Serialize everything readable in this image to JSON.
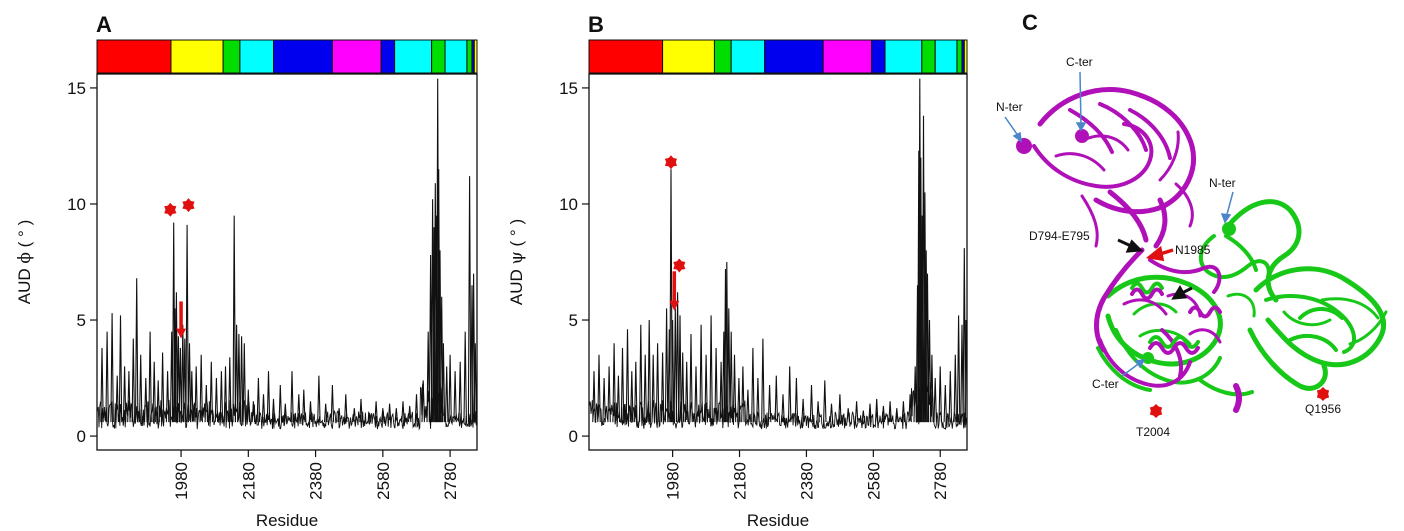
{
  "chart_data": [
    {
      "panel": "A",
      "type": "line",
      "xlabel": "Residue",
      "ylabel_prefix": "AUD ",
      "ylabel_symbol": "ϕ",
      "ylabel_suffix": " ( ° )",
      "xlim": [
        1730,
        2860
      ],
      "ylim": [
        -0.6,
        15.6
      ],
      "xticks": [
        1980,
        2180,
        2380,
        2580,
        2780
      ],
      "yticks": [
        0,
        5,
        10,
        15
      ],
      "domain_bar": [
        {
          "start": 1730,
          "end": 1950,
          "color": "#ff0000"
        },
        {
          "start": 1950,
          "end": 2105,
          "color": "#ffff00"
        },
        {
          "start": 2105,
          "end": 2155,
          "color": "#00dd00"
        },
        {
          "start": 2155,
          "end": 2255,
          "color": "#00ffff"
        },
        {
          "start": 2255,
          "end": 2430,
          "color": "#0000ee"
        },
        {
          "start": 2430,
          "end": 2575,
          "color": "#ff00ff"
        },
        {
          "start": 2575,
          "end": 2615,
          "color": "#0000ee"
        },
        {
          "start": 2615,
          "end": 2725,
          "color": "#00ffff"
        },
        {
          "start": 2725,
          "end": 2765,
          "color": "#00dd00"
        },
        {
          "start": 2765,
          "end": 2830,
          "color": "#00ffff"
        },
        {
          "start": 2830,
          "end": 2845,
          "color": "#00dd00"
        },
        {
          "start": 2845,
          "end": 2852,
          "color": "#0000ee"
        },
        {
          "start": 2852,
          "end": 2860,
          "color": "#ffff00"
        }
      ],
      "peaks": [
        {
          "x": 1745,
          "y": 3.8
        },
        {
          "x": 1760,
          "y": 4.5
        },
        {
          "x": 1775,
          "y": 5.3
        },
        {
          "x": 1790,
          "y": 2.6
        },
        {
          "x": 1800,
          "y": 5.2
        },
        {
          "x": 1812,
          "y": 3.0
        },
        {
          "x": 1825,
          "y": 2.8
        },
        {
          "x": 1838,
          "y": 4.2
        },
        {
          "x": 1848,
          "y": 6.8
        },
        {
          "x": 1860,
          "y": 3.5
        },
        {
          "x": 1875,
          "y": 2.5
        },
        {
          "x": 1888,
          "y": 4.5
        },
        {
          "x": 1900,
          "y": 3.2
        },
        {
          "x": 1912,
          "y": 2.4
        },
        {
          "x": 1925,
          "y": 3.6
        },
        {
          "x": 1940,
          "y": 2.8
        },
        {
          "x": 1952,
          "y": 4.5
        },
        {
          "x": 1958,
          "y": 9.2
        },
        {
          "x": 1962,
          "y": 5.5
        },
        {
          "x": 1966,
          "y": 6.2
        },
        {
          "x": 1972,
          "y": 4.3
        },
        {
          "x": 1978,
          "y": 3.8
        },
        {
          "x": 1985,
          "y": 4.8
        },
        {
          "x": 1991,
          "y": 4.2
        },
        {
          "x": 1998,
          "y": 9.1
        },
        {
          "x": 2005,
          "y": 4.0
        },
        {
          "x": 2012,
          "y": 2.8
        },
        {
          "x": 2025,
          "y": 3.0
        },
        {
          "x": 2040,
          "y": 3.5
        },
        {
          "x": 2055,
          "y": 2.2
        },
        {
          "x": 2070,
          "y": 3.2
        },
        {
          "x": 2085,
          "y": 2.5
        },
        {
          "x": 2100,
          "y": 2.8
        },
        {
          "x": 2112,
          "y": 3.0
        },
        {
          "x": 2125,
          "y": 3.4
        },
        {
          "x": 2138,
          "y": 9.5
        },
        {
          "x": 2145,
          "y": 4.8
        },
        {
          "x": 2152,
          "y": 4.4
        },
        {
          "x": 2160,
          "y": 4.3
        },
        {
          "x": 2168,
          "y": 4.0
        },
        {
          "x": 2180,
          "y": 2.0
        },
        {
          "x": 2195,
          "y": 1.5
        },
        {
          "x": 2210,
          "y": 2.5
        },
        {
          "x": 2225,
          "y": 1.8
        },
        {
          "x": 2240,
          "y": 2.8
        },
        {
          "x": 2255,
          "y": 1.6
        },
        {
          "x": 2275,
          "y": 2.2
        },
        {
          "x": 2290,
          "y": 1.4
        },
        {
          "x": 2310,
          "y": 2.8
        },
        {
          "x": 2330,
          "y": 1.8
        },
        {
          "x": 2345,
          "y": 2.0
        },
        {
          "x": 2365,
          "y": 1.5
        },
        {
          "x": 2390,
          "y": 2.6
        },
        {
          "x": 2410,
          "y": 1.4
        },
        {
          "x": 2430,
          "y": 2.2
        },
        {
          "x": 2450,
          "y": 1.2
        },
        {
          "x": 2470,
          "y": 1.8
        },
        {
          "x": 2495,
          "y": 1.2
        },
        {
          "x": 2515,
          "y": 1.6
        },
        {
          "x": 2540,
          "y": 1.0
        },
        {
          "x": 2560,
          "y": 1.5
        },
        {
          "x": 2580,
          "y": 1.2
        },
        {
          "x": 2600,
          "y": 1.4
        },
        {
          "x": 2620,
          "y": 1.2
        },
        {
          "x": 2640,
          "y": 1.5
        },
        {
          "x": 2660,
          "y": 1.3
        },
        {
          "x": 2680,
          "y": 1.8
        },
        {
          "x": 2700,
          "y": 2.4
        },
        {
          "x": 2715,
          "y": 4.5
        },
        {
          "x": 2722,
          "y": 7.8
        },
        {
          "x": 2728,
          "y": 10.2
        },
        {
          "x": 2732,
          "y": 9.0
        },
        {
          "x": 2736,
          "y": 10.9
        },
        {
          "x": 2740,
          "y": 9.5
        },
        {
          "x": 2743,
          "y": 15.4
        },
        {
          "x": 2746,
          "y": 11.5
        },
        {
          "x": 2750,
          "y": 8.0
        },
        {
          "x": 2755,
          "y": 6.0
        },
        {
          "x": 2760,
          "y": 4.0
        },
        {
          "x": 2770,
          "y": 3.0
        },
        {
          "x": 2780,
          "y": 3.5
        },
        {
          "x": 2795,
          "y": 2.8
        },
        {
          "x": 2810,
          "y": 3.2
        },
        {
          "x": 2825,
          "y": 4.5
        },
        {
          "x": 2838,
          "y": 11.2
        },
        {
          "x": 2845,
          "y": 6.5
        },
        {
          "x": 2850,
          "y": 7.0
        },
        {
          "x": 2855,
          "y": 4.0
        }
      ],
      "markers": [
        {
          "x": 1948,
          "y": 9.75
        },
        {
          "x": 2002,
          "y": 9.95
        }
      ],
      "arrows": [
        {
          "x": 1980,
          "y_from": 5.8,
          "y_to": 4.2
        }
      ]
    },
    {
      "panel": "B",
      "type": "line",
      "xlabel": "Residue",
      "ylabel_prefix": "AUD ",
      "ylabel_symbol": "ψ",
      "ylabel_suffix": " ( ° )",
      "xlim": [
        1730,
        2860
      ],
      "ylim": [
        -0.6,
        15.6
      ],
      "xticks": [
        1980,
        2180,
        2380,
        2580,
        2780
      ],
      "yticks": [
        0,
        5,
        10,
        15
      ],
      "domain_bar": [
        {
          "start": 1730,
          "end": 1950,
          "color": "#ff0000"
        },
        {
          "start": 1950,
          "end": 2105,
          "color": "#ffff00"
        },
        {
          "start": 2105,
          "end": 2155,
          "color": "#00dd00"
        },
        {
          "start": 2155,
          "end": 2255,
          "color": "#00ffff"
        },
        {
          "start": 2255,
          "end": 2430,
          "color": "#0000ee"
        },
        {
          "start": 2430,
          "end": 2575,
          "color": "#ff00ff"
        },
        {
          "start": 2575,
          "end": 2615,
          "color": "#0000ee"
        },
        {
          "start": 2615,
          "end": 2725,
          "color": "#00ffff"
        },
        {
          "start": 2725,
          "end": 2765,
          "color": "#00dd00"
        },
        {
          "start": 2765,
          "end": 2830,
          "color": "#00ffff"
        },
        {
          "start": 2830,
          "end": 2845,
          "color": "#00dd00"
        },
        {
          "start": 2845,
          "end": 2852,
          "color": "#0000ee"
        },
        {
          "start": 2852,
          "end": 2860,
          "color": "#ffff00"
        }
      ],
      "peaks": [
        {
          "x": 1745,
          "y": 2.8
        },
        {
          "x": 1760,
          "y": 3.5
        },
        {
          "x": 1775,
          "y": 2.5
        },
        {
          "x": 1790,
          "y": 3.0
        },
        {
          "x": 1805,
          "y": 4.0
        },
        {
          "x": 1818,
          "y": 2.6
        },
        {
          "x": 1830,
          "y": 3.8
        },
        {
          "x": 1845,
          "y": 4.6
        },
        {
          "x": 1858,
          "y": 2.8
        },
        {
          "x": 1870,
          "y": 3.2
        },
        {
          "x": 1885,
          "y": 4.8
        },
        {
          "x": 1898,
          "y": 3.5
        },
        {
          "x": 1910,
          "y": 5.0
        },
        {
          "x": 1922,
          "y": 3.5
        },
        {
          "x": 1935,
          "y": 4.0
        },
        {
          "x": 1950,
          "y": 3.6
        },
        {
          "x": 1962,
          "y": 5.5
        },
        {
          "x": 1970,
          "y": 4.6
        },
        {
          "x": 1975,
          "y": 11.5
        },
        {
          "x": 1980,
          "y": 5.0
        },
        {
          "x": 1988,
          "y": 5.5
        },
        {
          "x": 1995,
          "y": 6.2
        },
        {
          "x": 2002,
          "y": 5.2
        },
        {
          "x": 2010,
          "y": 3.6
        },
        {
          "x": 2022,
          "y": 3.2
        },
        {
          "x": 2035,
          "y": 4.4
        },
        {
          "x": 2050,
          "y": 3.0
        },
        {
          "x": 2065,
          "y": 4.8
        },
        {
          "x": 2080,
          "y": 3.5
        },
        {
          "x": 2095,
          "y": 5.2
        },
        {
          "x": 2110,
          "y": 3.8
        },
        {
          "x": 2125,
          "y": 3.2
        },
        {
          "x": 2133,
          "y": 4.5
        },
        {
          "x": 2138,
          "y": 7.2
        },
        {
          "x": 2142,
          "y": 7.5
        },
        {
          "x": 2148,
          "y": 5.5
        },
        {
          "x": 2155,
          "y": 4.5
        },
        {
          "x": 2165,
          "y": 3.5
        },
        {
          "x": 2178,
          "y": 2.5
        },
        {
          "x": 2190,
          "y": 3.0
        },
        {
          "x": 2205,
          "y": 2.0
        },
        {
          "x": 2220,
          "y": 3.8
        },
        {
          "x": 2235,
          "y": 2.5
        },
        {
          "x": 2250,
          "y": 4.2
        },
        {
          "x": 2270,
          "y": 2.2
        },
        {
          "x": 2290,
          "y": 2.6
        },
        {
          "x": 2310,
          "y": 1.8
        },
        {
          "x": 2330,
          "y": 3.0
        },
        {
          "x": 2350,
          "y": 2.5
        },
        {
          "x": 2370,
          "y": 1.6
        },
        {
          "x": 2395,
          "y": 2.2
        },
        {
          "x": 2415,
          "y": 1.5
        },
        {
          "x": 2435,
          "y": 2.4
        },
        {
          "x": 2455,
          "y": 1.4
        },
        {
          "x": 2480,
          "y": 1.8
        },
        {
          "x": 2505,
          "y": 1.2
        },
        {
          "x": 2530,
          "y": 1.5
        },
        {
          "x": 2550,
          "y": 1.1
        },
        {
          "x": 2570,
          "y": 1.4
        },
        {
          "x": 2590,
          "y": 1.6
        },
        {
          "x": 2610,
          "y": 1.3
        },
        {
          "x": 2630,
          "y": 1.5
        },
        {
          "x": 2650,
          "y": 1.2
        },
        {
          "x": 2670,
          "y": 1.5
        },
        {
          "x": 2690,
          "y": 1.8
        },
        {
          "x": 2705,
          "y": 3.0
        },
        {
          "x": 2712,
          "y": 6.5
        },
        {
          "x": 2716,
          "y": 12.3
        },
        {
          "x": 2719,
          "y": 15.4
        },
        {
          "x": 2722,
          "y": 12.0
        },
        {
          "x": 2726,
          "y": 9.5
        },
        {
          "x": 2730,
          "y": 13.8
        },
        {
          "x": 2734,
          "y": 10.5
        },
        {
          "x": 2738,
          "y": 8.0
        },
        {
          "x": 2742,
          "y": 7.0
        },
        {
          "x": 2748,
          "y": 5.0
        },
        {
          "x": 2755,
          "y": 3.5
        },
        {
          "x": 2765,
          "y": 2.5
        },
        {
          "x": 2780,
          "y": 3.0
        },
        {
          "x": 2795,
          "y": 2.2
        },
        {
          "x": 2810,
          "y": 2.8
        },
        {
          "x": 2825,
          "y": 3.5
        },
        {
          "x": 2835,
          "y": 5.2
        },
        {
          "x": 2845,
          "y": 4.8
        },
        {
          "x": 2852,
          "y": 8.1
        },
        {
          "x": 2857,
          "y": 5.0
        }
      ],
      "markers": [
        {
          "x": 1975,
          "y": 11.8
        },
        {
          "x": 2000,
          "y": 7.35
        }
      ],
      "arrows": [
        {
          "x": 1985,
          "y_from": 7.1,
          "y_to": 5.4
        }
      ]
    }
  ],
  "structure_panel": {
    "letter": "C",
    "colors": {
      "chain_a": "#b010b8",
      "chain_b": "#18c818",
      "callout": "#4a86c8",
      "marker": "#e01010"
    },
    "labels": {
      "n_ter_a": "N-ter",
      "c_ter_a": "C-ter",
      "n_ter_b": "N-ter",
      "c_ter_b": "C-ter",
      "d794": "D794-E795",
      "n1985": "N1985",
      "t2004": "T2004",
      "q1956": "Q1956"
    }
  }
}
